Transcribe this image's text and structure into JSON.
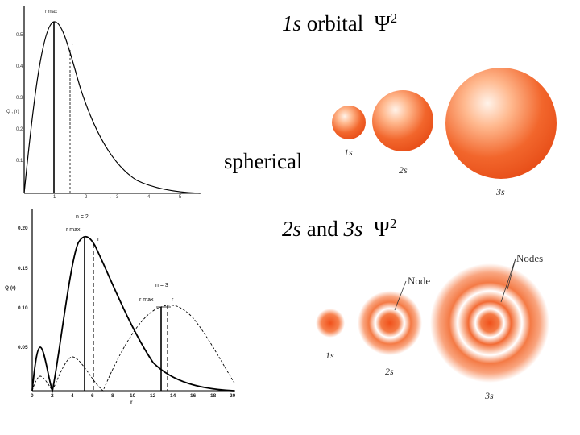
{
  "titles": {
    "t1": {
      "orbital": "1s",
      "word": "orbital",
      "psi": "Ψ",
      "exp": "2"
    },
    "spherical": "spherical",
    "t2": {
      "o1": "2s",
      "and": "and",
      "o2": "3s",
      "psi": "Ψ",
      "exp": "2"
    }
  },
  "top_chart": {
    "rmax_label": "r max",
    "rbar_label": "r",
    "y_axis_label": "Q , (r)",
    "x_axis_label": "r",
    "y_ticks": [
      "0.5",
      "0.4",
      "0.3",
      "0.2",
      "0.1"
    ],
    "x_ticks": [
      "1",
      "2",
      "3",
      "4",
      "5"
    ]
  },
  "bottom_chart": {
    "n2_label": "n = 2",
    "n3_label": "n = 3",
    "rmax2_label": "r max",
    "rbar2_label": "r",
    "rmax3_label": "r max",
    "rbar3_label": "r",
    "y_axis_label": "Q (r)",
    "x_axis_label": "r",
    "y_ticks": [
      "0.20",
      "0.15",
      "0.10",
      "0.05"
    ],
    "x_ticks": [
      "0",
      "2",
      "4",
      "6",
      "8",
      "10",
      "12",
      "14",
      "16",
      "18",
      "20"
    ]
  },
  "orbitals_top": {
    "s1": "1s",
    "s2": "2s",
    "s3": "3s"
  },
  "orbitals_bottom": {
    "s1": "1s",
    "s2": "2s",
    "s3": "3s",
    "node": "Node",
    "nodes": "Nodes"
  },
  "colors": {
    "orbital": "#f05a1e",
    "light": "#ffd9c2"
  }
}
